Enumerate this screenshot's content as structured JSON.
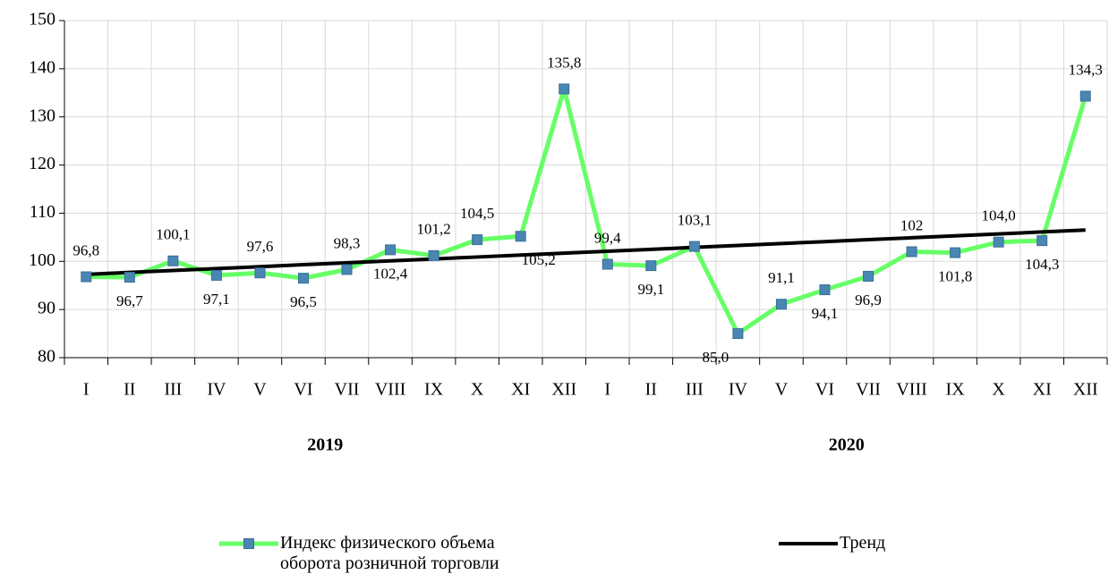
{
  "chart_data": {
    "type": "line",
    "categories": [
      "I",
      "II",
      "III",
      "IV",
      "V",
      "VI",
      "VII",
      "VIII",
      "IX",
      "X",
      "XI",
      "XII",
      "I",
      "II",
      "III",
      "IV",
      "V",
      "VI",
      "VII",
      "VIII",
      "IX",
      "X",
      "XI",
      "XII"
    ],
    "year_labels": [
      "2019",
      "2020"
    ],
    "series": [
      {
        "name": "Индекс физического объема оборота розничной торговли",
        "color": "#66ff66",
        "marker_color": "#4a86b4",
        "values": [
          96.8,
          96.7,
          100.1,
          97.1,
          97.6,
          96.5,
          98.3,
          102.4,
          101.2,
          104.5,
          105.2,
          135.8,
          99.4,
          99.1,
          103.1,
          85.0,
          91.1,
          94.1,
          96.9,
          102,
          101.8,
          104.0,
          104.3,
          134.3
        ],
        "value_labels": [
          "96,8",
          "96,7",
          "100,1",
          "97,1",
          "97,6",
          "96,5",
          "98,3",
          "102,4",
          "101,2",
          "104,5",
          "105,2",
          "135,8",
          "99,4",
          "99,1",
          "103,1",
          "85,0",
          "91,1",
          "94,1",
          "96,9",
          "102",
          "101,8",
          "104,0",
          "104,3",
          "134,3"
        ]
      },
      {
        "name": "Тренд",
        "color": "#000000",
        "values": [
          97.3,
          97.7,
          98.1,
          98.5,
          98.9,
          99.3,
          99.7,
          100.1,
          100.5,
          100.9,
          101.3,
          101.7,
          102.1,
          102.5,
          102.9,
          103.3,
          103.7,
          104.1,
          104.5,
          104.9,
          105.3,
          105.7,
          106.1,
          106.5
        ]
      }
    ],
    "ylim": [
      80,
      150
    ],
    "yticks": [
      80,
      90,
      100,
      110,
      120,
      130,
      140,
      150
    ],
    "grid": true
  }
}
